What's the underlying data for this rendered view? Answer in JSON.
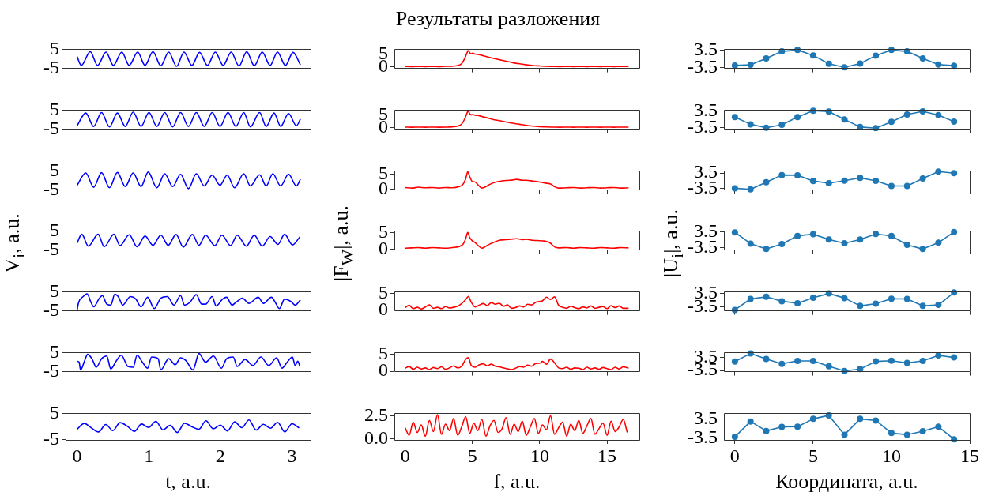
{
  "chart_data": [
    {
      "type": "line",
      "color": "#0000ff",
      "xlim": [
        -0.16,
        3.26
      ],
      "ylim": [
        -5,
        5
      ],
      "xticks": [
        0,
        1,
        2,
        3
      ],
      "yticks": [
        -5,
        5
      ],
      "tick_labels": "y",
      "x": [
        0,
        0.059,
        0.184,
        0.287,
        0.404,
        0.507,
        0.625,
        0.728,
        0.846,
        0.949,
        1.059,
        1.169,
        1.279,
        1.39,
        1.493,
        1.603,
        1.71,
        1.82,
        1.93,
        2.04,
        2.151,
        2.261,
        2.368,
        2.474,
        2.585,
        2.695,
        2.798,
        2.908,
        3.015,
        3.118
      ],
      "values": [
        1.15,
        -3.44,
        3.72,
        -3.44,
        3.53,
        -3.44,
        3.53,
        -3.44,
        3.53,
        -3.44,
        3.72,
        -3.62,
        3.53,
        -3.9,
        3.53,
        -3.44,
        3.35,
        -3.44,
        3.53,
        -3.44,
        3.53,
        -3.8,
        3.72,
        -3.62,
        3.53,
        -3.44,
        3.53,
        -3.44,
        3.35,
        -3.17
      ]
    },
    {
      "type": "line",
      "title": "Результаты разложения",
      "color": "#ff0000",
      "xlim": [
        -0.8,
        17.4
      ],
      "ylim": [
        -0.5,
        7.0
      ],
      "xticks": [
        0,
        5,
        10,
        15
      ],
      "yticks": [
        0,
        5
      ],
      "tick_labels": "y",
      "x": [
        0,
        0.5,
        1,
        1.5,
        2,
        2.5,
        3,
        3.5,
        3.9,
        4.2,
        4.45,
        4.6,
        4.67,
        4.8,
        4.9,
        5.0,
        5.2,
        5.4,
        5.7,
        6,
        6.5,
        7,
        7.5,
        8,
        8.5,
        9,
        9.5,
        10,
        10.5,
        11,
        11.5,
        12,
        12.5,
        13,
        13.5,
        14,
        14.5,
        15,
        15.5,
        16,
        16.6
      ],
      "values": [
        0.25,
        0.2,
        0.25,
        0.2,
        0.25,
        0.2,
        0.3,
        0.35,
        0.6,
        1.4,
        3.7,
        5.65,
        6.5,
        5.65,
        5.2,
        5.45,
        5.1,
        5.0,
        4.6,
        4.15,
        3.5,
        2.9,
        2.3,
        1.75,
        1.3,
        0.9,
        0.6,
        0.45,
        0.3,
        0.25,
        0.2,
        0.25,
        0.2,
        0.25,
        0.2,
        0.25,
        0.2,
        0.25,
        0.2,
        0.25,
        0.25
      ]
    },
    {
      "type": "line",
      "marker": "circle",
      "color": "#1f77b4",
      "xlim": [
        -0.7,
        15
      ],
      "ylim": [
        -3.9,
        3.8
      ],
      "xticks": [
        0,
        5,
        10,
        15
      ],
      "yticks": [
        -3.5,
        3.5
      ],
      "tick_labels": "y",
      "x": [
        0,
        1,
        2,
        3,
        4,
        5,
        6,
        7,
        8,
        9,
        10,
        11,
        12,
        13,
        14
      ],
      "values": [
        -2.73,
        -2.45,
        0.14,
        2.94,
        3.5,
        1.33,
        -2.03,
        -3.5,
        -1.96,
        1.26,
        3.5,
        2.94,
        0.14,
        -2.38,
        -2.8
      ]
    },
    {
      "type": "line",
      "color": "#0000ff",
      "xlim": [
        -0.16,
        3.26
      ],
      "ylim": [
        -5,
        5
      ],
      "xticks": [
        0,
        1,
        2,
        3
      ],
      "yticks": [
        -5,
        5
      ],
      "tick_labels": "y",
      "x": [
        0,
        0.121,
        0.232,
        0.342,
        0.452,
        0.563,
        0.673,
        0.783,
        0.893,
        1.004,
        1.114,
        1.224,
        1.335,
        1.445,
        1.555,
        1.665,
        1.776,
        1.886,
        1.996,
        2.107,
        2.217,
        2.327,
        2.419,
        2.548,
        2.64,
        2.75,
        2.842,
        2.952,
        3.062,
        3.118
      ],
      "values": [
        -3.2,
        3.45,
        -3.55,
        3.73,
        -3.8,
        3.45,
        -3.55,
        3.9,
        -3.55,
        3.73,
        -3.55,
        3.73,
        -3.8,
        3.73,
        -3.55,
        3.73,
        -3.55,
        3.73,
        -3.55,
        3.73,
        -3.55,
        3.73,
        -3.8,
        3.73,
        -3.55,
        3.45,
        -3.55,
        3.2,
        -3.2,
        0.27
      ]
    },
    {
      "type": "line",
      "color": "#ff0000",
      "xlim": [
        -0.8,
        17.4
      ],
      "ylim": [
        -0.5,
        6.9
      ],
      "xticks": [
        0,
        5,
        10,
        15
      ],
      "yticks": [
        0,
        5
      ],
      "tick_labels": "y",
      "x": [
        0,
        0.5,
        1,
        1.5,
        2,
        2.5,
        3,
        3.5,
        3.9,
        4.2,
        4.45,
        4.6,
        4.67,
        4.8,
        4.9,
        5.0,
        5.2,
        5.4,
        5.7,
        6,
        6.5,
        7,
        7.5,
        8,
        8.5,
        9,
        9.5,
        10,
        10.5,
        11,
        11.5,
        12,
        12.5,
        13,
        13.5,
        14,
        14.5,
        15,
        15.5,
        16,
        16.6
      ],
      "values": [
        0.3,
        0.25,
        0.3,
        0.25,
        0.3,
        0.25,
        0.3,
        0.4,
        0.7,
        1.5,
        3.8,
        5.8,
        6.6,
        5.5,
        5.0,
        5.2,
        4.9,
        4.8,
        4.4,
        4.0,
        3.3,
        2.8,
        2.3,
        1.8,
        1.4,
        1.0,
        0.7,
        0.5,
        0.35,
        0.3,
        0.25,
        0.3,
        0.25,
        0.3,
        0.25,
        0.3,
        0.25,
        0.3,
        0.25,
        0.3,
        0.3
      ]
    },
    {
      "type": "line",
      "marker": "circle",
      "color": "#1f77b4",
      "xlim": [
        -0.7,
        15
      ],
      "ylim": [
        -4.1,
        3.8
      ],
      "xticks": [
        0,
        5,
        10,
        15
      ],
      "yticks": [
        -3.5,
        3.5
      ],
      "tick_labels": "y",
      "x": [
        0,
        1,
        2,
        3,
        4,
        5,
        6,
        7,
        8,
        9,
        10,
        11,
        12,
        13,
        14
      ],
      "values": [
        0.93,
        -2.07,
        -3.5,
        -2.29,
        0.93,
        3.5,
        3.21,
        -0.07,
        -3.21,
        -3.64,
        -1.07,
        2.0,
        3.29,
        1.71,
        -1.0
      ]
    },
    {
      "type": "line",
      "color": "#0000ff",
      "xlim": [
        -0.16,
        3.26
      ],
      "ylim": [
        -5,
        5
      ],
      "xticks": [
        0,
        1,
        2,
        3
      ],
      "yticks": [
        -5,
        5
      ],
      "tick_labels": "y",
      "x": [
        0,
        0.121,
        0.232,
        0.342,
        0.452,
        0.563,
        0.673,
        0.783,
        0.893,
        0.993,
        1.114,
        1.224,
        1.335,
        1.445,
        1.555,
        1.665,
        1.776,
        1.886,
        1.996,
        2.096,
        2.199,
        2.327,
        2.419,
        2.548,
        2.64,
        2.732,
        2.842,
        2.952,
        3.062,
        3.118
      ],
      "values": [
        -2.6,
        3.9,
        -3.55,
        4.1,
        -3.8,
        4.2,
        -3.2,
        3.9,
        -3.2,
        4.4,
        -3.8,
        3.5,
        -3.2,
        3.2,
        -4.3,
        3.5,
        -2.9,
        2.8,
        -2.45,
        2.8,
        -3.8,
        3.5,
        -2.9,
        3.0,
        -2.9,
        3.5,
        -2.9,
        3.3,
        -2.9,
        0.7
      ]
    },
    {
      "type": "line",
      "color": "#ff0000",
      "xlim": [
        -0.8,
        17.4
      ],
      "ylim": [
        -0.36,
        6.2
      ],
      "xticks": [
        0,
        5,
        10,
        15
      ],
      "yticks": [
        0,
        5
      ],
      "tick_labels": "y",
      "x": [
        0,
        0.5,
        1,
        1.5,
        2,
        2.5,
        3,
        3.5,
        4,
        4.3,
        4.5,
        4.65,
        4.8,
        5.0,
        5.2,
        5.4,
        5.7,
        6.0,
        6.3,
        6.6,
        7,
        7.5,
        8,
        8.3,
        8.7,
        9,
        9.5,
        10,
        10.3,
        10.6,
        10.8,
        11.1,
        11.4,
        12,
        12.5,
        13,
        13.5,
        14,
        14.5,
        15,
        15.5,
        16,
        16.6
      ],
      "values": [
        0.5,
        0.3,
        0.6,
        0.4,
        0.5,
        0.3,
        0.5,
        0.4,
        0.8,
        1.6,
        3.5,
        5.9,
        4.2,
        2.5,
        2.4,
        1.5,
        0.3,
        0.8,
        1.6,
        2.2,
        2.6,
        2.9,
        3.1,
        3.3,
        3.0,
        3.0,
        2.7,
        2.4,
        2.1,
        1.9,
        1.7,
        0.8,
        0.3,
        0.4,
        0.5,
        0.3,
        0.4,
        0.5,
        0.3,
        0.4,
        0.5,
        0.3,
        0.4
      ]
    },
    {
      "type": "line",
      "marker": "circle",
      "color": "#1f77b4",
      "xlim": [
        -0.7,
        15
      ],
      "ylim": [
        -4.3,
        4.45
      ],
      "xticks": [
        0,
        5,
        10,
        15
      ],
      "yticks": [
        -3.5,
        3.5
      ],
      "tick_labels": "y",
      "x": [
        0,
        1,
        2,
        3,
        4,
        5,
        6,
        7,
        8,
        9,
        10,
        11,
        12,
        13,
        14
      ],
      "values": [
        -3.5,
        -3.98,
        -0.72,
        2.55,
        2.47,
        -0.16,
        -1.19,
        0,
        1.27,
        -0.08,
        -2.47,
        -2.47,
        0.95,
        4.14,
        3.42
      ]
    },
    {
      "type": "line",
      "ylabel": "V$_{i}$, a.u.",
      "color": "#0000ff",
      "xlim": [
        -0.16,
        3.26
      ],
      "ylim": [
        -5,
        5
      ],
      "xticks": [
        0,
        1,
        2,
        3
      ],
      "yticks": [
        -5,
        5
      ],
      "tick_labels": "y",
      "x": [
        0,
        0.066,
        0.158,
        0.294,
        0.379,
        0.515,
        0.599,
        0.728,
        0.838,
        0.949,
        1.059,
        1.169,
        1.272,
        1.382,
        1.482,
        1.61,
        1.702,
        1.794,
        1.923,
        2.022,
        2.143,
        2.235,
        2.364,
        2.474,
        2.585,
        2.695,
        2.805,
        2.897,
        3.007,
        3.11
      ],
      "values": [
        -1.33,
        3.26,
        -2.98,
        3.26,
        -3.26,
        3.26,
        -2.7,
        3.0,
        -3.26,
        2.34,
        -2.52,
        2.8,
        -2.52,
        3.17,
        -3.44,
        3.17,
        -2.52,
        2.8,
        -2.7,
        2.8,
        -2.7,
        2.8,
        -2.98,
        2.8,
        -2.98,
        2.06,
        -2.06,
        3.26,
        -2.34,
        1.88
      ]
    },
    {
      "type": "line",
      "ylabel": "|F$_{W}$|, a.u.",
      "color": "#ff0000",
      "xlim": [
        -0.8,
        17.4
      ],
      "ylim": [
        -0.26,
        5.55
      ],
      "xticks": [
        0,
        5,
        10,
        15
      ],
      "yticks": [
        0,
        5
      ],
      "tick_labels": "y",
      "x": [
        0,
        0.5,
        1,
        1.5,
        2,
        2.5,
        3,
        3.5,
        4,
        4.3,
        4.5,
        4.65,
        4.8,
        5.0,
        5.2,
        5.4,
        5.7,
        6.0,
        6.3,
        6.6,
        7,
        7.5,
        8,
        8.3,
        8.7,
        9,
        9.5,
        10,
        10.3,
        10.6,
        10.8,
        11.1,
        11.4,
        12,
        12.5,
        13,
        13.5,
        14,
        14.5,
        15,
        15.5,
        16,
        16.6
      ],
      "values": [
        0.3,
        0.4,
        0.5,
        0.3,
        0.5,
        0.4,
        0.3,
        0.5,
        0.8,
        1.5,
        3.2,
        5.1,
        3.5,
        2.5,
        2.0,
        1.2,
        0.3,
        0.9,
        1.6,
        2.1,
        2.7,
        2.9,
        3.1,
        3.2,
        2.9,
        3.0,
        2.7,
        2.6,
        2.5,
        2.2,
        1.8,
        0.7,
        0.4,
        0.5,
        0.3,
        0.5,
        0.4,
        0.3,
        0.5,
        0.4,
        0.3,
        0.5,
        0.4
      ]
    },
    {
      "type": "line",
      "ylabel": "|U$_{i}$|, a.u.",
      "marker": "circle",
      "color": "#1f77b4",
      "xlim": [
        -0.7,
        15
      ],
      "ylim": [
        -4.6,
        3.8
      ],
      "xticks": [
        0,
        5,
        10,
        15
      ],
      "yticks": [
        -3.5,
        3.5
      ],
      "tick_labels": "y",
      "x": [
        0,
        1,
        2,
        3,
        4,
        5,
        6,
        7,
        8,
        9,
        10,
        11,
        12,
        13,
        14
      ],
      "values": [
        3.2,
        -1.77,
        -4.17,
        -1.99,
        1.62,
        2.37,
        0.04,
        -1.62,
        0.04,
        2.45,
        1.62,
        -2.29,
        -4.17,
        -1.39,
        3.35
      ]
    },
    {
      "type": "line",
      "color": "#0000ff",
      "xlim": [
        -0.16,
        3.26
      ],
      "ylim": [
        -5,
        5
      ],
      "xticks": [
        0,
        1,
        2,
        3
      ],
      "yticks": [
        -5,
        5
      ],
      "tick_labels": "y",
      "x": [
        0,
        0.022,
        0.085,
        0.14,
        0.195,
        0.232,
        0.305,
        0.353,
        0.415,
        0.471,
        0.526,
        0.581,
        0.636,
        0.746,
        0.82,
        0.893,
        0.985,
        1.077,
        1.169,
        1.261,
        1.353,
        1.445,
        1.5,
        1.574,
        1.665,
        1.739,
        1.794,
        1.886,
        1.941,
        2.033,
        2.088,
        2.162,
        2.217,
        2.309,
        2.401,
        2.529,
        2.603,
        2.713,
        2.768,
        2.824,
        2.897,
        2.989,
        3.044,
        3.118
      ],
      "values": [
        -4.7,
        -0.6,
        2.5,
        3.9,
        -0.6,
        -2.9,
        1.2,
        3.0,
        -1.5,
        -2.0,
        3.7,
        2.1,
        -2.0,
        2.5,
        1.2,
        -2.9,
        2.1,
        -3.8,
        1.6,
        2.5,
        -2.0,
        3.0,
        -2.0,
        -0.6,
        3.45,
        -1.5,
        -1.5,
        2.5,
        -2.45,
        1.2,
        2.1,
        -2.0,
        -0.6,
        1.6,
        -1.1,
        2.1,
        -1.1,
        2.1,
        -0.6,
        -3.8,
        1.2,
        -0.2,
        -2.0,
        0.7
      ]
    },
    {
      "type": "line",
      "color": "#ff0000",
      "xlim": [
        -0.8,
        17.4
      ],
      "ylim": [
        -0.15,
        5.5
      ],
      "xticks": [
        0,
        5,
        10,
        15
      ],
      "yticks": [
        0,
        5
      ],
      "tick_labels": "y",
      "x": [
        0,
        0.3,
        0.6,
        0.9,
        1.2,
        1.5,
        1.8,
        2.1,
        2.4,
        2.7,
        3.0,
        3.3,
        3.6,
        3.9,
        4.2,
        4.5,
        4.7,
        4.9,
        5.2,
        5.5,
        5.8,
        6.1,
        6.4,
        6.7,
        7.0,
        7.3,
        7.6,
        7.9,
        8.2,
        8.5,
        8.8,
        9.1,
        9.4,
        9.7,
        10.0,
        10.2,
        10.5,
        10.8,
        11.1,
        11.4,
        11.7,
        12.0,
        12.3,
        12.6,
        12.9,
        13.2,
        13.5,
        13.8,
        14.1,
        14.4,
        14.7,
        15.0,
        15.3,
        15.6,
        15.9,
        16.2,
        16.6
      ],
      "values": [
        0.8,
        1.5,
        0.5,
        0.9,
        0.4,
        1.0,
        1.6,
        0.6,
        0.9,
        0.5,
        1.1,
        0.7,
        0.9,
        1.2,
        2.0,
        3.2,
        4.1,
        2.5,
        1.0,
        1.5,
        2.0,
        1.4,
        2.3,
        1.8,
        2.1,
        1.2,
        1.6,
        0.6,
        0.8,
        1.3,
        1.0,
        1.8,
        1.6,
        2.4,
        2.6,
        2.8,
        3.9,
        3.2,
        4.0,
        1.5,
        0.9,
        0.6,
        1.2,
        0.8,
        0.5,
        1.0,
        0.7,
        1.3,
        0.6,
        0.9,
        1.1,
        0.5,
        1.4,
        0.8,
        1.3,
        0.6,
        0.6
      ]
    },
    {
      "type": "line",
      "marker": "circle",
      "color": "#1f77b4",
      "xlim": [
        -0.7,
        15
      ],
      "ylim": [
        -5.4,
        4.4
      ],
      "xticks": [
        0,
        5,
        10,
        15
      ],
      "yticks": [
        -3.5,
        3.5
      ],
      "tick_labels": "y",
      "x": [
        0,
        1,
        2,
        3,
        4,
        5,
        6,
        7,
        8,
        9,
        10,
        11,
        12,
        13,
        14
      ],
      "values": [
        -4.94,
        0.72,
        1.79,
        -0.45,
        -1.53,
        1.35,
        3.5,
        1.17,
        -2.87,
        -1.71,
        0.81,
        0.72,
        -2.87,
        -2.33,
        4.04
      ]
    },
    {
      "type": "line",
      "color": "#0000ff",
      "xlim": [
        -0.16,
        3.26
      ],
      "ylim": [
        -5,
        5
      ],
      "xticks": [
        0,
        1,
        2,
        3
      ],
      "yticks": [
        -5,
        5
      ],
      "tick_labels": "y",
      "x": [
        0,
        0.029,
        0.048,
        0.103,
        0.147,
        0.213,
        0.268,
        0.342,
        0.415,
        0.471,
        0.544,
        0.618,
        0.71,
        0.783,
        0.838,
        0.912,
        0.985,
        1.04,
        1.132,
        1.169,
        1.279,
        1.371,
        1.445,
        1.518,
        1.618,
        1.702,
        1.794,
        1.904,
        2.015,
        2.088,
        2.18,
        2.235,
        2.346,
        2.456,
        2.566,
        2.676,
        2.787,
        2.86,
        2.934,
        3.007,
        3.044,
        3.081,
        3.11
      ],
      "values": [
        0.45,
        0,
        -4.1,
        0.45,
        4.1,
        1.4,
        -2.7,
        1.8,
        3.2,
        -3.6,
        0.45,
        3.6,
        -2.3,
        -2.7,
        3.6,
        0,
        -3.2,
        2.7,
        1.8,
        -4.1,
        1.8,
        -1.4,
        2.3,
        0.9,
        -4.1,
        4.5,
        0,
        3.2,
        -3.2,
        1.8,
        2.7,
        -2.3,
        1.4,
        -1.8,
        2.7,
        -1.8,
        2.3,
        -3.2,
        0,
        2.7,
        -1.8,
        0.45,
        -2.3
      ]
    },
    {
      "type": "line",
      "color": "#ff0000",
      "xlim": [
        -0.8,
        17.4
      ],
      "ylim": [
        -0.1,
        5.5
      ],
      "xticks": [
        0,
        5,
        10,
        15
      ],
      "yticks": [
        0,
        5
      ],
      "tick_labels": "y",
      "x": [
        0,
        0.3,
        0.6,
        0.9,
        1.2,
        1.5,
        1.8,
        2.1,
        2.4,
        2.7,
        3.0,
        3.3,
        3.6,
        3.9,
        4.2,
        4.5,
        4.7,
        4.9,
        5.2,
        5.5,
        5.8,
        6.1,
        6.4,
        6.7,
        7.0,
        7.3,
        7.6,
        7.9,
        8.2,
        8.5,
        8.8,
        9.1,
        9.4,
        9.7,
        10.0,
        10.2,
        10.5,
        10.8,
        11.1,
        11.4,
        11.7,
        12.0,
        12.3,
        12.6,
        12.9,
        13.2,
        13.5,
        13.8,
        14.1,
        14.4,
        14.7,
        15.0,
        15.3,
        15.6,
        15.9,
        16.2,
        16.6
      ],
      "values": [
        0.9,
        1.4,
        0.6,
        1.2,
        0.7,
        1.0,
        0.5,
        1.1,
        0.8,
        1.3,
        0.6,
        1.0,
        1.6,
        1.0,
        1.5,
        3.5,
        4.0,
        1.8,
        1.2,
        1.9,
        2.2,
        1.6,
        2.1,
        1.5,
        1.3,
        1.0,
        0.7,
        0.5,
        0.9,
        1.4,
        1.2,
        1.8,
        1.5,
        2.3,
        2.4,
        2.9,
        2.1,
        3.6,
        2.5,
        1.0,
        0.8,
        1.2,
        0.6,
        1.0,
        0.9,
        0.5,
        1.2,
        0.7,
        1.0,
        0.6,
        1.1,
        0.8,
        0.5,
        1.2,
        0.7,
        1.3,
        0.9
      ]
    },
    {
      "type": "line",
      "marker": "circle",
      "color": "#1f77b4",
      "xlim": [
        -0.7,
        15
      ],
      "ylim": [
        -4.1,
        6.0
      ],
      "xticks": [
        0,
        5,
        10,
        15
      ],
      "yticks": [
        -3.5,
        3.5
      ],
      "tick_labels": "y",
      "x": [
        0,
        1,
        2,
        3,
        4,
        5,
        6,
        7,
        8,
        9,
        10,
        11,
        12,
        13,
        14
      ],
      "values": [
        1.23,
        5.5,
        2.59,
        0.05,
        1.59,
        1.59,
        -1.23,
        -3.77,
        -2.68,
        1.32,
        1.68,
        0.5,
        1.59,
        4.5,
        3.41
      ]
    },
    {
      "type": "line",
      "xlabel": "t, a.u.",
      "color": "#0000ff",
      "xlim": [
        -0.16,
        3.26
      ],
      "ylim": [
        -5,
        5
      ],
      "xticks": [
        0,
        1,
        2,
        3
      ],
      "yticks": [
        -5,
        5
      ],
      "x": [
        0,
        0.1,
        0.2,
        0.3,
        0.4,
        0.5,
        0.6,
        0.7,
        0.8,
        0.9,
        1.0,
        1.1,
        1.2,
        1.3,
        1.4,
        1.5,
        1.6,
        1.7,
        1.8,
        1.9,
        2.0,
        2.1,
        2.2,
        2.3,
        2.4,
        2.5,
        2.6,
        2.7,
        2.8,
        2.9,
        3.0,
        3.1
      ],
      "values": [
        -1.0,
        1.2,
        -0.5,
        -2.0,
        0.8,
        -1.5,
        1.5,
        0.2,
        -1.8,
        1.0,
        -0.3,
        2.0,
        -1.2,
        0.5,
        -2.2,
        1.3,
        0.0,
        -1.0,
        2.2,
        -0.8,
        0.6,
        -1.6,
        1.8,
        -0.4,
        2.5,
        -1.3,
        0.9,
        -0.6,
        1.6,
        -2.0,
        1.1,
        -0.5
      ]
    },
    {
      "type": "line",
      "xlabel": "f, a.u.",
      "color": "#ff0000",
      "xlim": [
        -0.8,
        17.4
      ],
      "ylim": [
        -0.1,
        2.75
      ],
      "xticks": [
        0,
        5,
        10,
        15
      ],
      "yticks": [
        {
          "value": 0,
          "label": "0.0"
        },
        2.5
      ],
      "x": [
        0,
        0.3,
        0.6,
        0.9,
        1.2,
        1.5,
        1.8,
        2.1,
        2.4,
        2.7,
        3.0,
        3.3,
        3.6,
        3.9,
        4.2,
        4.5,
        4.8,
        5.1,
        5.4,
        5.7,
        6.0,
        6.3,
        6.6,
        6.9,
        7.2,
        7.5,
        7.8,
        8.1,
        8.4,
        8.7,
        9.0,
        9.3,
        9.6,
        9.9,
        10.2,
        10.5,
        10.8,
        11.1,
        11.4,
        11.7,
        12.0,
        12.3,
        12.6,
        12.9,
        13.2,
        13.5,
        13.8,
        14.1,
        14.4,
        14.7,
        15.0,
        15.3,
        15.6,
        15.9,
        16.2,
        16.5
      ],
      "values": [
        1.2,
        0.4,
        1.8,
        0.7,
        1.5,
        0.3,
        2.0,
        0.8,
        2.6,
        0.5,
        1.6,
        0.9,
        2.2,
        0.4,
        1.3,
        2.4,
        0.6,
        1.7,
        0.9,
        2.1,
        0.3,
        1.4,
        2.0,
        0.7,
        1.1,
        2.3,
        0.5,
        1.6,
        0.8,
        1.9,
        0.4,
        1.3,
        2.2,
        0.6,
        1.5,
        1.0,
        2.5,
        0.5,
        1.2,
        1.8,
        0.3,
        1.6,
        0.9,
        2.0,
        0.6,
        1.4,
        2.2,
        0.5,
        1.1,
        1.7,
        0.4,
        1.9,
        0.8,
        1.3,
        2.1,
        0.7
      ]
    },
    {
      "type": "line",
      "xlabel": "Координата, a.u.",
      "marker": "circle",
      "color": "#1f77b4",
      "xlim": [
        -0.7,
        15
      ],
      "ylim": [
        -4.1,
        5.6
      ],
      "xticks": [
        0,
        5,
        10,
        15
      ],
      "yticks": [
        -3.5,
        3.5
      ],
      "x": [
        0,
        1,
        2,
        3,
        4,
        5,
        6,
        7,
        8,
        9,
        10,
        11,
        12,
        13,
        14
      ],
      "values": [
        -2.98,
        2.64,
        -0.82,
        0.65,
        0.73,
        3.59,
        4.88,
        -2.2,
        3.59,
        2.98,
        -1.6,
        -2.2,
        -0.91,
        0.73,
        -3.85
      ]
    }
  ]
}
